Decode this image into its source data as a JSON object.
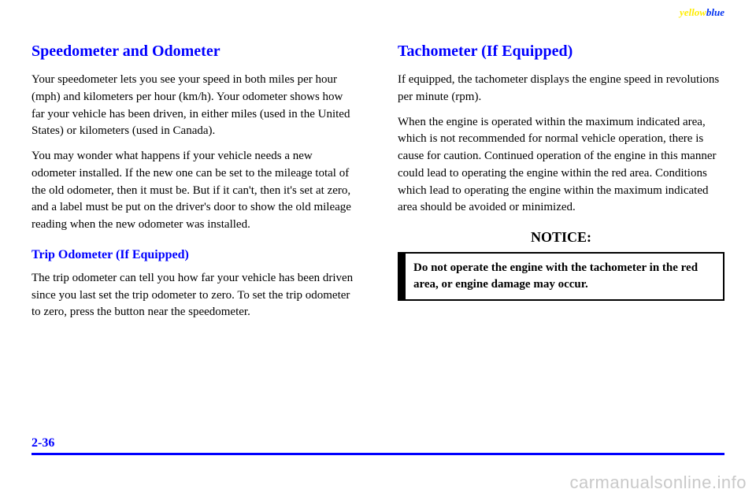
{
  "topcorner": {
    "yellow": "yellow",
    "blue": "blue"
  },
  "left": {
    "heading1": "Speedometer and Odometer",
    "p1": "Your speedometer lets you see your speed in both miles per hour (mph) and kilometers per hour (km/h). Your odometer shows how far your vehicle has been driven, in either miles (used in the United States) or kilometers (used in Canada).",
    "p2": "You may wonder what happens if your vehicle needs a new odometer installed. If the new one can be set to the mileage total of the old odometer, then it must be. But if it can't, then it's set at zero, and a label must be put on the driver's door to show the old mileage reading when the new odometer was installed.",
    "subheading": "Trip Odometer (If Equipped)",
    "p3": "The trip odometer can tell you how far your vehicle has been driven since you last set the trip odometer to zero. To set the trip odometer to zero, press the button near the speedometer."
  },
  "right": {
    "heading1": "Tachometer (If Equipped)",
    "p1": "If equipped, the tachometer displays the engine speed in revolutions per minute (rpm).",
    "p2": "When the engine is operated within the maximum indicated area, which is not recommended for normal vehicle operation, there is cause for caution. Continued operation of the engine in this manner could lead to operating the engine within the red area. Conditions which lead to operating the engine within the maximum indicated area should be avoided or minimized.",
    "noticeLabel": "NOTICE:",
    "noticeText": "Do not operate the engine with the tachometer in the red area, or engine damage may occur."
  },
  "pageNumber": "2-36",
  "watermark": "carmanualsonline.info"
}
